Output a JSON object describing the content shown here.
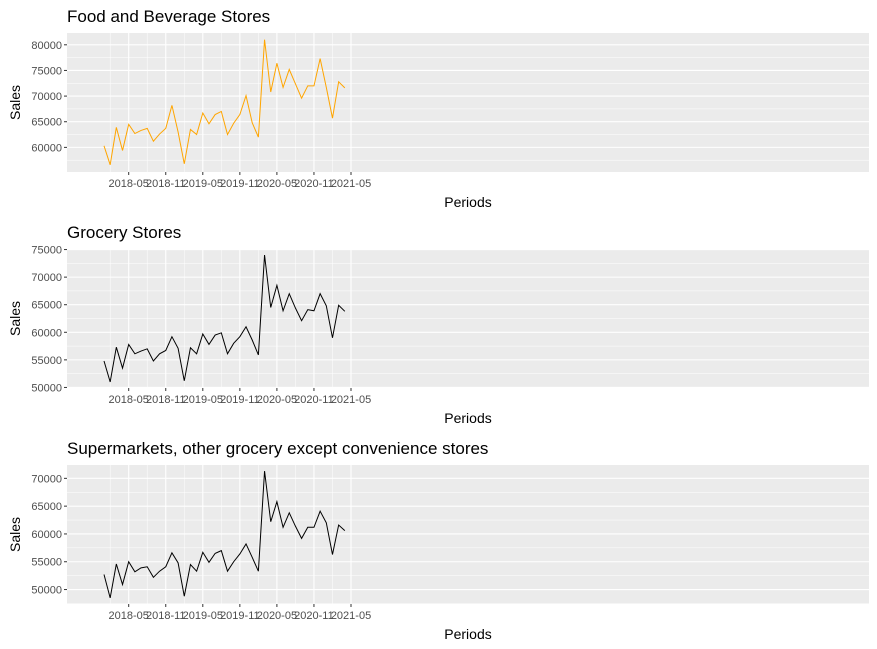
{
  "chart_data": [
    {
      "type": "line",
      "title": "Food and Beverage Stores",
      "xlabel": "Periods",
      "ylabel": "Sales",
      "color": "#FFA500",
      "x": [
        "2018-01",
        "2018-02",
        "2018-03",
        "2018-04",
        "2018-05",
        "2018-06",
        "2018-07",
        "2018-08",
        "2018-09",
        "2018-10",
        "2018-11",
        "2018-12",
        "2019-01",
        "2019-02",
        "2019-03",
        "2019-04",
        "2019-05",
        "2019-06",
        "2019-07",
        "2019-08",
        "2019-09",
        "2019-10",
        "2019-11",
        "2019-12",
        "2020-01",
        "2020-02",
        "2020-03",
        "2020-04",
        "2020-05",
        "2020-06",
        "2020-07",
        "2020-08",
        "2020-09",
        "2020-10",
        "2020-11",
        "2020-12",
        "2021-01",
        "2021-02",
        "2021-03",
        "2021-04"
      ],
      "values": [
        60300,
        56600,
        63900,
        59400,
        64500,
        62700,
        63300,
        63700,
        61200,
        62600,
        63700,
        68200,
        63000,
        56800,
        63500,
        62500,
        66700,
        64600,
        66400,
        67000,
        62500,
        64700,
        66400,
        70100,
        64800,
        62000,
        81000,
        70800,
        76400,
        71700,
        75200,
        72400,
        69600,
        72000,
        72000,
        77300,
        71700,
        65700,
        72800,
        71600
      ],
      "ylim": [
        55200,
        82300
      ],
      "yticks": [
        60000,
        65000,
        70000,
        75000,
        80000
      ],
      "ytick_labels": [
        "60000",
        "65000",
        "70000",
        "75000",
        "80000"
      ],
      "xticks": [
        "2018-05",
        "2018-11",
        "2019-05",
        "2019-11",
        "2020-05",
        "2020-11",
        "2021-05"
      ],
      "grid": true
    },
    {
      "type": "line",
      "title": "Grocery Stores",
      "xlabel": "Periods",
      "ylabel": "Sales",
      "color": "#000000",
      "x": [
        "2018-01",
        "2018-02",
        "2018-03",
        "2018-04",
        "2018-05",
        "2018-06",
        "2018-07",
        "2018-08",
        "2018-09",
        "2018-10",
        "2018-11",
        "2018-12",
        "2019-01",
        "2019-02",
        "2019-03",
        "2019-04",
        "2019-05",
        "2019-06",
        "2019-07",
        "2019-08",
        "2019-09",
        "2019-10",
        "2019-11",
        "2019-12",
        "2020-01",
        "2020-02",
        "2020-03",
        "2020-04",
        "2020-05",
        "2020-06",
        "2020-07",
        "2020-08",
        "2020-09",
        "2020-10",
        "2020-11",
        "2020-12",
        "2021-01",
        "2021-02",
        "2021-03",
        "2021-04"
      ],
      "values": [
        54800,
        51000,
        57300,
        53500,
        57800,
        56100,
        56600,
        57000,
        54800,
        56100,
        56700,
        59200,
        57100,
        51200,
        57200,
        56100,
        59700,
        57800,
        59500,
        59900,
        56100,
        58000,
        59200,
        61000,
        58600,
        55900,
        74000,
        64500,
        68500,
        63900,
        67000,
        64400,
        62100,
        64100,
        63900,
        67000,
        64800,
        59000,
        64900,
        63800
      ],
      "ylim": [
        49900,
        75100
      ],
      "yticks": [
        50000,
        55000,
        60000,
        65000,
        70000,
        75000
      ],
      "ytick_labels": [
        "50000",
        "55000",
        "60000",
        "65000",
        "70000",
        "75000"
      ],
      "xticks": [
        "2018-05",
        "2018-11",
        "2019-05",
        "2019-11",
        "2020-05",
        "2020-11",
        "2021-05"
      ],
      "grid": true
    },
    {
      "type": "line",
      "title": "Supermarkets, other grocery except convenience stores",
      "xlabel": "Periods",
      "ylabel": "Sales",
      "color": "#000000",
      "x": [
        "2018-01",
        "2018-02",
        "2018-03",
        "2018-04",
        "2018-05",
        "2018-06",
        "2018-07",
        "2018-08",
        "2018-09",
        "2018-10",
        "2018-11",
        "2018-12",
        "2019-01",
        "2019-02",
        "2019-03",
        "2019-04",
        "2019-05",
        "2019-06",
        "2019-07",
        "2019-08",
        "2019-09",
        "2019-10",
        "2019-11",
        "2019-12",
        "2020-01",
        "2020-02",
        "2020-03",
        "2020-04",
        "2020-05",
        "2020-06",
        "2020-07",
        "2020-08",
        "2020-09",
        "2020-10",
        "2020-11",
        "2020-12",
        "2021-01",
        "2021-02",
        "2021-03",
        "2021-04"
      ],
      "values": [
        52700,
        48500,
        54600,
        50900,
        55000,
        53200,
        53900,
        54100,
        52200,
        53300,
        54100,
        56600,
        54800,
        48800,
        54500,
        53300,
        56700,
        54900,
        56500,
        57000,
        53300,
        55000,
        56400,
        58200,
        55800,
        53300,
        71300,
        62200,
        65800,
        61200,
        63800,
        61400,
        59200,
        61200,
        61200,
        64100,
        62000,
        56300,
        61600,
        60600
      ],
      "ylim": [
        47400,
        72400
      ],
      "yticks": [
        50000,
        55000,
        60000,
        65000,
        70000
      ],
      "ytick_labels": [
        "50000",
        "55000",
        "60000",
        "65000",
        "70000"
      ],
      "xticks": [
        "2018-05",
        "2018-11",
        "2019-05",
        "2019-11",
        "2020-05",
        "2020-11",
        "2021-05"
      ],
      "grid": true
    }
  ]
}
